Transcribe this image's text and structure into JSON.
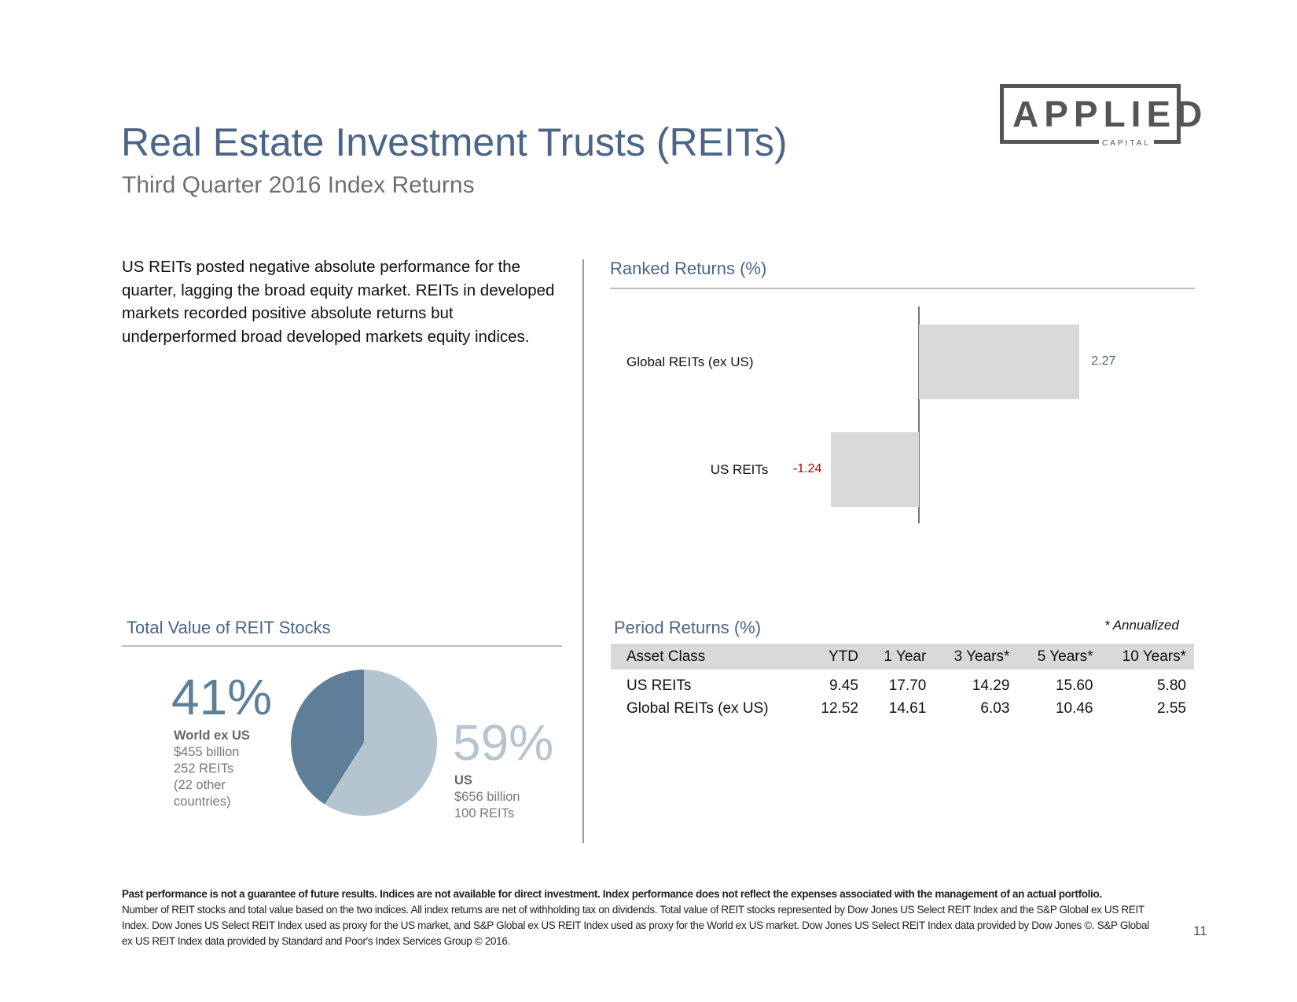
{
  "header": {
    "title": "Real Estate Investment Trusts (REITs)",
    "subtitle": "Third Quarter 2016 Index Returns"
  },
  "logo": {
    "word": "APPLIED",
    "sub": "CAPITAL"
  },
  "intro": "US REITs posted negative absolute performance for the quarter, lagging the broad equity market. REITs in developed markets recorded positive absolute returns but underperformed broad developed markets equity indices.",
  "ranked": {
    "heading": "Ranked Returns (%)",
    "bars": [
      {
        "label": "Global REITs (ex US)",
        "value": "2.27"
      },
      {
        "label": "US REITs",
        "value": "-1.24"
      }
    ]
  },
  "period": {
    "heading": "Period Returns (%)",
    "note": "* Annualized",
    "columns": [
      "Asset Class",
      "YTD",
      "1 Year",
      "3 Years*",
      "5 Years*",
      "10 Years*"
    ],
    "rows": [
      [
        "US REITs",
        "9.45",
        "17.70",
        "14.29",
        "15.60",
        "5.80"
      ],
      [
        "Global REITs (ex US)",
        "12.52",
        "14.61",
        "6.03",
        "10.46",
        "2.55"
      ]
    ]
  },
  "total_value": {
    "heading": "Total Value of REIT Stocks",
    "world": {
      "pct": "41%",
      "name": "World ex US",
      "value": "$455 billion",
      "count": "252 REITs",
      "note1": "(22 other",
      "note2": "countries)"
    },
    "us": {
      "pct": "59%",
      "name": "US",
      "value": "$656 billion",
      "count": "100 REITs"
    }
  },
  "chart_data": [
    {
      "type": "bar",
      "orientation": "horizontal",
      "title": "Ranked Returns (%)",
      "categories": [
        "Global REITs (ex US)",
        "US REITs"
      ],
      "values": [
        2.27,
        -1.24
      ],
      "data_labels": [
        "2.27",
        "-1.24"
      ],
      "colors": {
        "bar": "#d9d9d9",
        "negative_label": "#b00000",
        "positive_label": "#4a6585"
      }
    },
    {
      "type": "pie",
      "title": "Total Value of REIT Stocks",
      "labels": [
        "World ex US",
        "US"
      ],
      "values": [
        41,
        59
      ],
      "colors": [
        "#5f7f99",
        "#b4c5d0"
      ]
    }
  ],
  "footer": {
    "bold": "Past performance is not a guarantee of future results. Indices are not available for direct investment. Index performance does not reflect the expenses associated with the management of an actual portfolio.",
    "text": "Number of REIT stocks and total value based on the two indices. All index returns are net of withholding tax on dividends. Total value of REIT stocks represented by Dow Jones US Select REIT Index and the S&P Global ex US REIT Index. Dow Jones US Select REIT Index used as proxy for the US market, and S&P Global ex US REIT Index used as proxy for the World ex US market. Dow Jones US Select REIT Index data provided by Dow Jones ©. S&P Global ex US REIT Index data provided by Standard and Poor's Index Services Group © 2016.",
    "page": "11"
  }
}
